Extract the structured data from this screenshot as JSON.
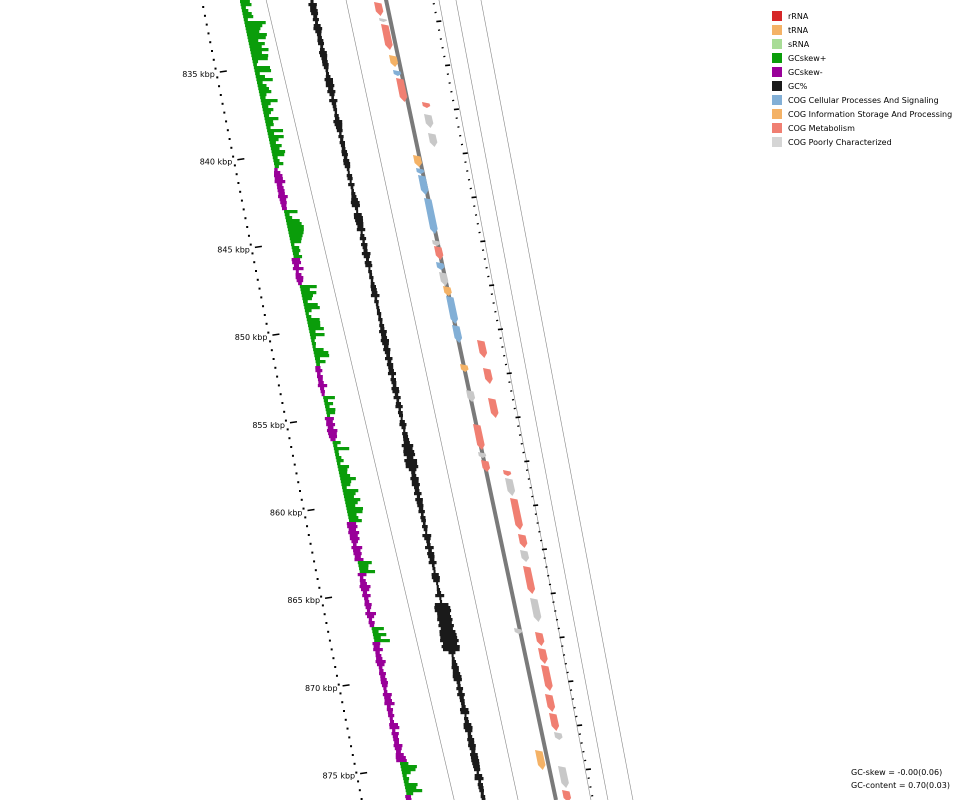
{
  "legend": [
    {
      "label": "rRNA",
      "color": "#d62728"
    },
    {
      "label": "tRNA",
      "color": "#f4b266"
    },
    {
      "label": "sRNA",
      "color": "#a8dc96"
    },
    {
      "label": "GCskew+",
      "color": "#0a9d0a"
    },
    {
      "label": "GCskew-",
      "color": "#990099"
    },
    {
      "label": "GC%",
      "color": "#1a1a1a"
    },
    {
      "label": "COG Cellular Processes And Signaling",
      "color": "#82afd6"
    },
    {
      "label": "COG Information Storage And Processing",
      "color": "#f4b266"
    },
    {
      "label": "COG Metabolism",
      "color": "#f07f72"
    },
    {
      "label": "COG Poorly Characterized",
      "color": "#d5d5d5"
    }
  ],
  "position_labels": [
    "835 kbp",
    "840 kbp",
    "845 kbp",
    "850 kbp",
    "855 kbp",
    "860 kbp",
    "865 kbp",
    "870 kbp",
    "875 kbp"
  ],
  "stats": {
    "gc_skew": "GC-skew = -0.00(0.06)",
    "gc_content": "GC-content = 0.70(0.03)"
  }
}
